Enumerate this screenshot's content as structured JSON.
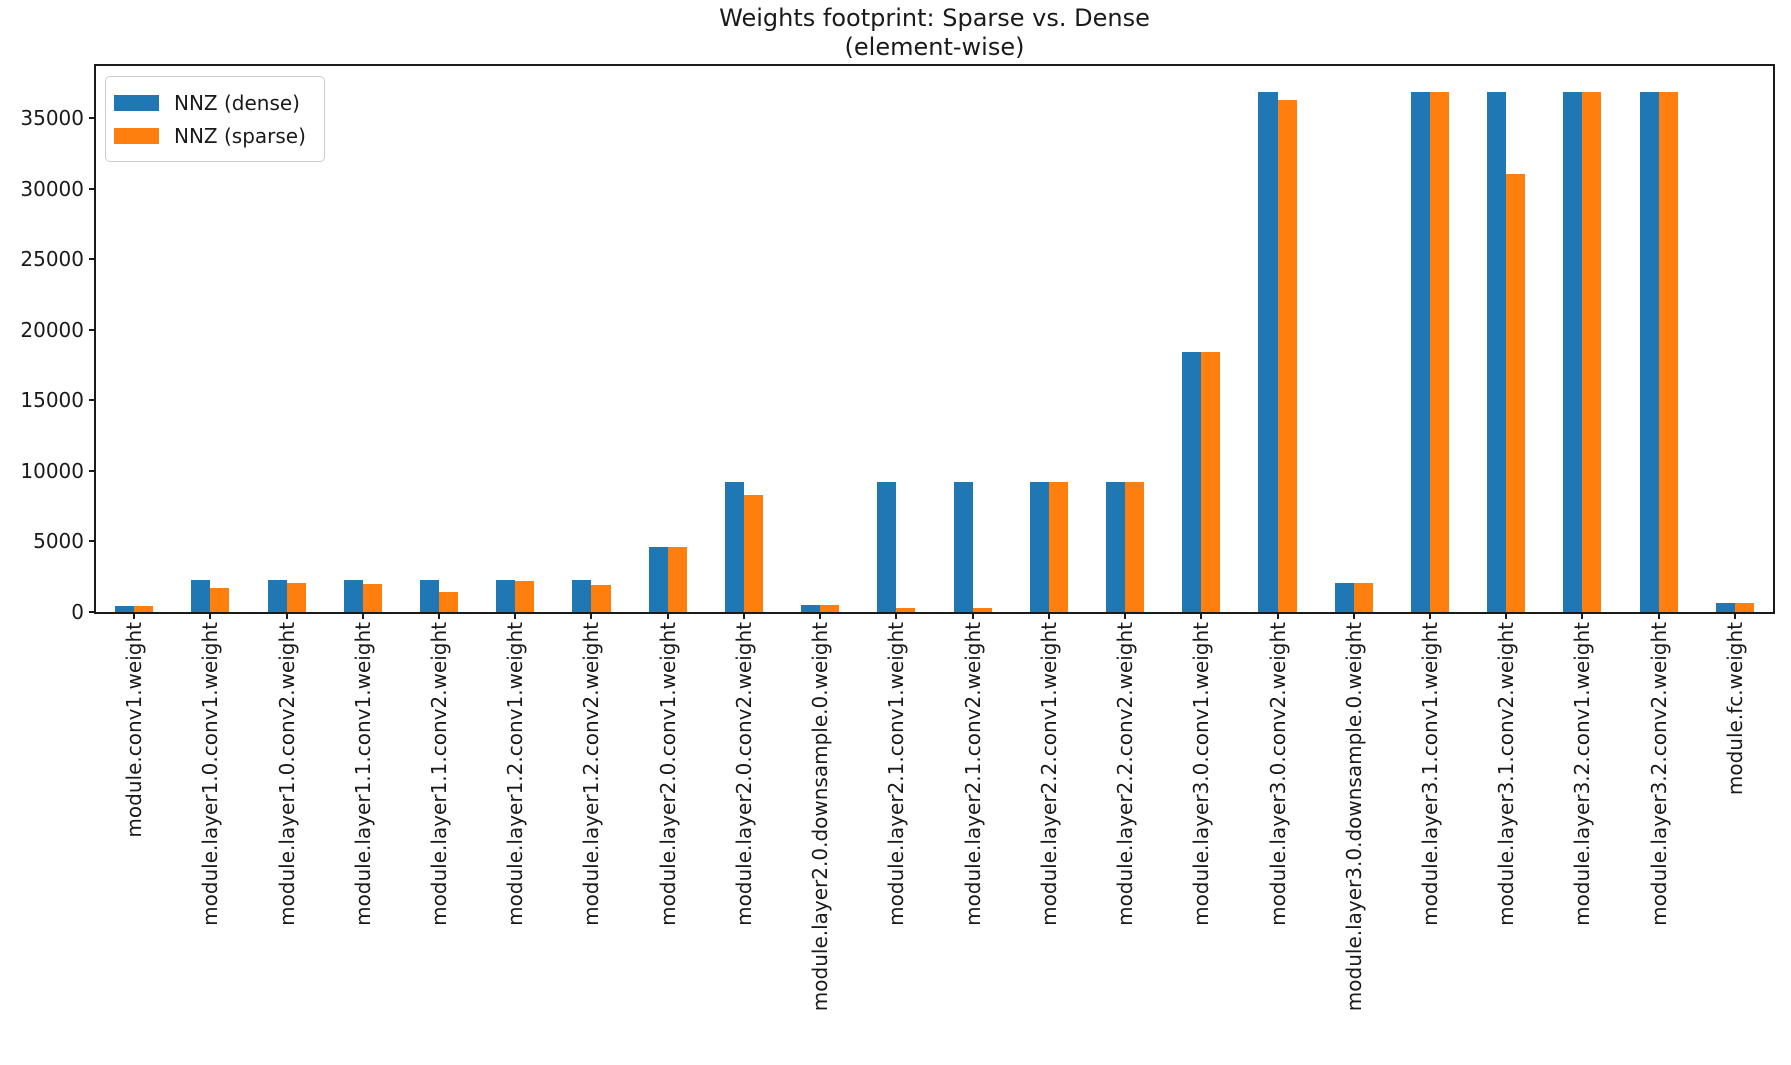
{
  "figure": {
    "title_line1": "Weights footprint: Sparse vs. Dense",
    "title_line2": "(element-wise)"
  },
  "legend": {
    "items": [
      {
        "label": "NNZ (dense)",
        "color": "#1f77b4"
      },
      {
        "label": "NNZ (sparse)",
        "color": "#ff7f0e"
      }
    ]
  },
  "chart_data": {
    "type": "bar",
    "title": "Weights footprint: Sparse vs. Dense\n(element-wise)",
    "xlabel": "",
    "ylabel": "",
    "categories": [
      "module.conv1.weight",
      "module.layer1.0.conv1.weight",
      "module.layer1.0.conv2.weight",
      "module.layer1.1.conv1.weight",
      "module.layer1.1.conv2.weight",
      "module.layer1.2.conv1.weight",
      "module.layer1.2.conv2.weight",
      "module.layer2.0.conv1.weight",
      "module.layer2.0.conv2.weight",
      "module.layer2.0.downsample.0.weight",
      "module.layer2.1.conv1.weight",
      "module.layer2.1.conv2.weight",
      "module.layer2.2.conv1.weight",
      "module.layer2.2.conv2.weight",
      "module.layer3.0.conv1.weight",
      "module.layer3.0.conv2.weight",
      "module.layer3.0.downsample.0.weight",
      "module.layer3.1.conv1.weight",
      "module.layer3.1.conv2.weight",
      "module.layer3.2.conv1.weight",
      "module.layer3.2.conv2.weight",
      "module.fc.weight"
    ],
    "series": [
      {
        "name": "NNZ (dense)",
        "color": "#1f77b4",
        "values": [
          432,
          2304,
          2304,
          2304,
          2304,
          2304,
          2304,
          4608,
          9216,
          512,
          9216,
          9216,
          9216,
          9216,
          18432,
          36864,
          2048,
          36864,
          36864,
          36864,
          36864,
          640
        ]
      },
      {
        "name": "NNZ (sparse)",
        "color": "#ff7f0e",
        "values": [
          432,
          1700,
          2080,
          1960,
          1420,
          2230,
          1950,
          4608,
          8300,
          512,
          300,
          300,
          9216,
          9216,
          18432,
          36270,
          2048,
          36864,
          31030,
          36864,
          36864,
          640
        ]
      }
    ],
    "ylim": [
      0,
      38700
    ],
    "yticks": [
      0,
      5000,
      10000,
      15000,
      20000,
      25000,
      30000,
      35000
    ],
    "grid": false,
    "legend_position": "upper left",
    "xtick_rotation": 90
  }
}
